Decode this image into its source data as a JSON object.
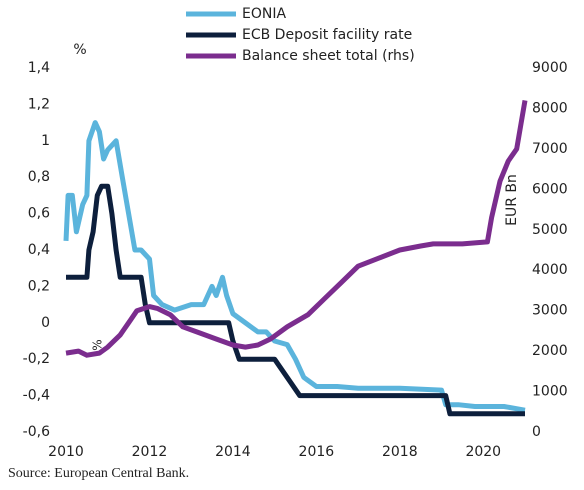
{
  "chart_data": {
    "type": "line",
    "y_label": "%",
    "y2_label": "EUR Bn",
    "annotation": "%",
    "source": "Source: European Central Bank.",
    "xlim": [
      2010,
      2021
    ],
    "xticks": [
      2010,
      2012,
      2014,
      2016,
      2018,
      2020
    ],
    "ylim": [
      -0.6,
      1.4
    ],
    "yticks": [
      {
        "value": -0.6,
        "label": "-0,6"
      },
      {
        "value": -0.4,
        "label": "-0,4"
      },
      {
        "value": -0.2,
        "label": "-0,2"
      },
      0,
      {
        "value": 0.2,
        "label": "0,2"
      },
      {
        "value": 0.4,
        "label": "0,4"
      },
      {
        "value": 0.6,
        "label": "0,6"
      },
      {
        "value": 0.8,
        "label": "0,8"
      },
      1,
      {
        "value": 1.2,
        "label": "1,2"
      },
      {
        "value": 1.4,
        "label": "1,4"
      }
    ],
    "y2lim": [
      0,
      9000
    ],
    "y2ticks": [
      0,
      1000,
      2000,
      3000,
      4000,
      5000,
      6000,
      7000,
      8000,
      9000
    ],
    "series": [
      {
        "name": "EONIA",
        "color": "#5bb4dc",
        "x": [
          2010,
          2010.05,
          2010.15,
          2010.25,
          2010.4,
          2010.5,
          2010.55,
          2010.7,
          2010.8,
          2010.9,
          2011,
          2011.2,
          2011.35,
          2011.5,
          2011.65,
          2011.8,
          2012,
          2012.1,
          2012.3,
          2012.6,
          2013,
          2013.3,
          2013.5,
          2013.6,
          2013.75,
          2013.85,
          2014,
          2014.3,
          2014.6,
          2014.8,
          2015,
          2015.3,
          2015.5,
          2015.7,
          2016,
          2016.5,
          2017,
          2018,
          2019,
          2019.1,
          2019.4,
          2019.8,
          2020.5,
          2021
        ],
        "values": [
          0.45,
          0.7,
          0.7,
          0.5,
          0.65,
          0.7,
          1.0,
          1.1,
          1.05,
          0.9,
          0.95,
          1.0,
          0.8,
          0.6,
          0.4,
          0.4,
          0.35,
          0.15,
          0.1,
          0.07,
          0.1,
          0.1,
          0.2,
          0.15,
          0.25,
          0.15,
          0.05,
          0.0,
          -0.05,
          -0.05,
          -0.1,
          -0.12,
          -0.2,
          -0.3,
          -0.35,
          -0.35,
          -0.36,
          -0.36,
          -0.37,
          -0.45,
          -0.45,
          -0.46,
          -0.46,
          -0.48
        ]
      },
      {
        "name": "ECB Deposit facility rate",
        "color": "#0d1f3c",
        "x": [
          2010,
          2010.5,
          2010.55,
          2010.65,
          2010.75,
          2010.85,
          2011,
          2011.1,
          2011.2,
          2011.3,
          2011.8,
          2011.9,
          2012,
          2013.9,
          2014,
          2014.15,
          2015,
          2015.3,
          2015.6,
          2019.1,
          2019.2,
          2021
        ],
        "values": [
          0.25,
          0.25,
          0.4,
          0.5,
          0.7,
          0.75,
          0.75,
          0.6,
          0.4,
          0.25,
          0.25,
          0.1,
          0.0,
          0.0,
          -0.1,
          -0.2,
          -0.2,
          -0.3,
          -0.4,
          -0.4,
          -0.5,
          -0.5
        ]
      },
      {
        "name": "Balance sheet total (rhs)",
        "color": "#7b2d8e",
        "axis": "y2",
        "x": [
          2010,
          2010.3,
          2010.5,
          2010.8,
          2011,
          2011.3,
          2011.5,
          2011.7,
          2012,
          2012.2,
          2012.5,
          2012.8,
          2013.2,
          2013.6,
          2014,
          2014.3,
          2014.6,
          2014.9,
          2015.3,
          2015.8,
          2016.2,
          2016.6,
          2017,
          2017.5,
          2018,
          2018.5,
          2018.8,
          2019.5,
          2020.1,
          2020.2,
          2020.4,
          2020.6,
          2020.8,
          2021
        ],
        "values": [
          1950,
          2000,
          1900,
          1950,
          2100,
          2400,
          2700,
          3000,
          3100,
          3050,
          2900,
          2600,
          2450,
          2300,
          2150,
          2100,
          2150,
          2300,
          2600,
          2900,
          3300,
          3700,
          4100,
          4300,
          4500,
          4600,
          4650,
          4650,
          4700,
          5300,
          6200,
          6700,
          7000,
          8200
        ]
      }
    ]
  }
}
